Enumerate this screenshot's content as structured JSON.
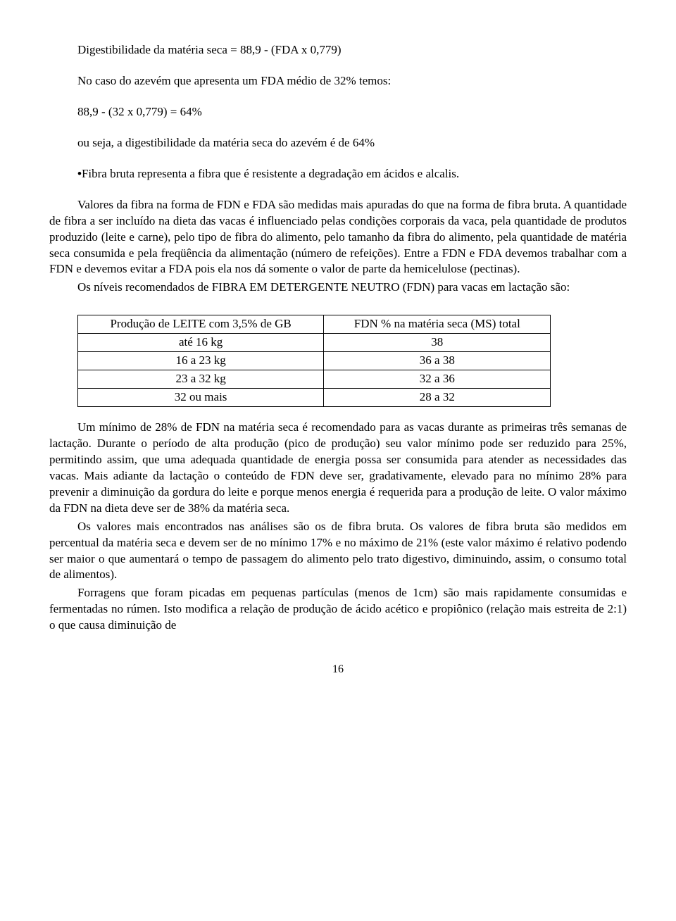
{
  "p1": "Digestibilidade da matéria seca = 88,9 - (FDA x 0,779)",
  "p2": "No caso do azevém que apresenta um FDA médio de 32% temos:",
  "p3": "88,9 - (32 x 0,779) = 64%",
  "p4": "ou seja, a digestibilidade da matéria seca do azevém é de 64%",
  "p5_bullet": "•",
  "p5": "Fibra bruta representa a fibra que é resistente a degradação em ácidos e alcalis.",
  "p6": "Valores da fibra na forma de FDN e FDA são medidas mais apuradas do que na forma de fibra bruta. A quantidade de fibra a ser incluído na dieta das vacas é influenciado pelas condições corporais da vaca, pela quantidade de produtos produzido (leite e carne), pelo tipo de fibra do alimento, pelo tamanho da fibra do alimento, pela quantidade de matéria seca consumida e pela freqüência da alimentação (número de refeições). Entre a FDN e FDA devemos trabalhar com a FDN e devemos evitar a FDA pois ela nos dá somente o valor de parte da hemicelulose (pectinas).",
  "p7": "Os níveis recomendados de FIBRA EM DETERGENTE NEUTRO (FDN) para vacas em lactação são:",
  "table": {
    "header": [
      "Produção de LEITE com 3,5% de GB",
      "FDN % na matéria seca (MS) total"
    ],
    "rows": [
      [
        "até 16 kg",
        "38"
      ],
      [
        "16 a 23 kg",
        "36 a 38"
      ],
      [
        "23 a 32 kg",
        "32 a 36"
      ],
      [
        "32 ou mais",
        "28 a 32"
      ]
    ]
  },
  "p8": "Um mínimo de 28% de FDN na matéria seca é recomendado para as vacas durante as primeiras três semanas de lactação. Durante o período de alta produção (pico de produção) seu valor mínimo pode ser reduzido para 25%, permitindo assim, que uma adequada quantidade de energia possa ser consumida para atender as necessidades das vacas. Mais adiante da lactação o conteúdo de FDN deve ser, gradativamente, elevado para no mínimo 28% para prevenir a diminuição da gordura do leite e porque menos energia é requerida para a produção de leite. O valor máximo da FDN na dieta deve ser de 38% da matéria seca.",
  "p9": "Os valores mais encontrados nas análises são os de fibra bruta. Os valores de fibra bruta são medidos em percentual da matéria seca e devem ser de no mínimo 17% e no máximo de 21% (este valor máximo é relativo podendo ser maior o que aumentará o tempo de passagem do alimento pelo trato digestivo, diminuindo, assim, o consumo total de alimentos).",
  "p10": "Forragens que foram picadas em pequenas partículas (menos de 1cm) são mais rapidamente consumidas e fermentadas no rúmen. Isto modifica a relação de produção de ácido acético e propiônico (relação mais estreita de 2:1) o que causa diminuição de",
  "page_number": "16"
}
